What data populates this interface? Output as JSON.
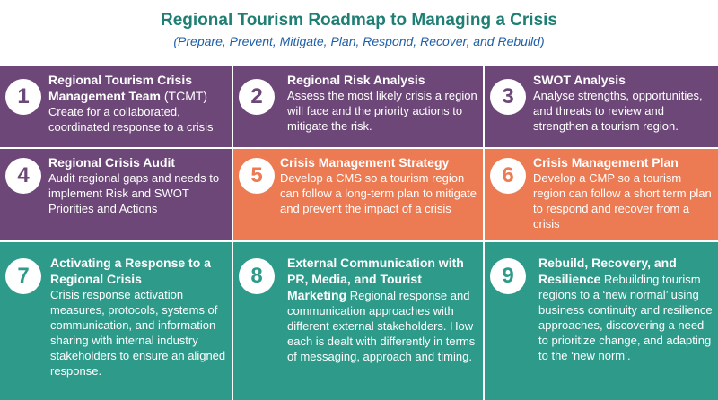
{
  "header": {
    "title": "Regional Tourism Roadmap to Managing a Crisis",
    "subtitle": "(Prepare, Prevent, Mitigate, Plan, Respond, Recover, and Rebuild)"
  },
  "steps": [
    {
      "number": "1",
      "title": "Regional Tourism Crisis Management Team",
      "title_suffix": " (TCMT)",
      "description": "Create for a collaborated, coordinated response to a crisis",
      "color": "#6d4778"
    },
    {
      "number": "2",
      "title": "Regional Risk Analysis",
      "description": "Assess the most likely crisis a region will face and the priority actions to mitigate the risk.",
      "color": "#6d4778"
    },
    {
      "number": "3",
      "title": "SWOT Analysis",
      "description": "Analyse strengths, opportunities, and threats to review and strengthen a tourism region.",
      "color": "#6d4778"
    },
    {
      "number": "4",
      "title": "Regional Crisis Audit",
      "description": "Audit regional gaps and needs to implement Risk and SWOT Priorities and Actions",
      "color": "#6d4778"
    },
    {
      "number": "5",
      "title": "Crisis Management Strategy",
      "description": "Develop a CMS so a tourism region can follow a long-term plan to mitigate and prevent the impact of a crisis",
      "color": "#ec7a52"
    },
    {
      "number": "6",
      "title": "Crisis Management Plan",
      "description": "Develop a CMP so a tourism region can follow a short term plan to respond and recover from a crisis",
      "color": "#ec7a52"
    },
    {
      "number": "7",
      "title": "Activating a Response to a Regional Crisis",
      "description": "Crisis response activation measures, protocols, systems of communication, and information sharing with internal industry stakeholders to ensure an aligned response.",
      "color": "#2e9a8a"
    },
    {
      "number": "8",
      "title": "External Communication with PR, Media, and Tourist Marketing",
      "description": "Regional response and communication approaches with different external stakeholders. How each is dealt with differently in terms of messaging, approach and timing.",
      "color": "#2e9a8a"
    },
    {
      "number": "9",
      "title": "Rebuild, Recovery, and Resilience",
      "description": "Rebuilding tourism regions to a ‘new normal’ using business continuity and resilience approaches, discovering a need to prioritize change, and adapting to the ‘new norm’.",
      "color": "#2e9a8a"
    }
  ]
}
